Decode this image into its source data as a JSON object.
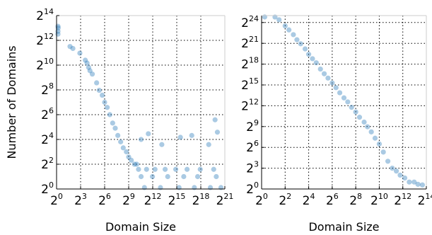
{
  "chart_data": [
    {
      "type": "scatter",
      "title": "",
      "xlabel": "Domain Size",
      "ylabel": "Number of Domains",
      "xscale": "log2",
      "yscale": "log2",
      "xlim": [
        1,
        2097152
      ],
      "ylim": [
        1,
        16384
      ],
      "x_ticks": [
        {
          "base": "2",
          "exp": "0"
        },
        {
          "base": "2",
          "exp": "3"
        },
        {
          "base": "2",
          "exp": "6"
        },
        {
          "base": "2",
          "exp": "9"
        },
        {
          "base": "2",
          "exp": "12"
        },
        {
          "base": "2",
          "exp": "15"
        },
        {
          "base": "2",
          "exp": "18"
        },
        {
          "base": "2",
          "exp": "21"
        }
      ],
      "y_ticks": [
        {
          "base": "2",
          "exp": "0"
        },
        {
          "base": "2",
          "exp": "2"
        },
        {
          "base": "2",
          "exp": "4"
        },
        {
          "base": "2",
          "exp": "6"
        },
        {
          "base": "2",
          "exp": "8"
        },
        {
          "base": "2",
          "exp": "10"
        },
        {
          "base": "2",
          "exp": "12"
        },
        {
          "base": "2",
          "exp": "14"
        }
      ],
      "grid": true,
      "point_color": "#2b7bba",
      "points": [
        [
          1,
          9000
        ],
        [
          1.15,
          8200
        ],
        [
          1.1,
          6800
        ],
        [
          1.05,
          5800
        ],
        [
          3.2,
          2900
        ],
        [
          4.1,
          2600
        ],
        [
          7.5,
          2000
        ],
        [
          12,
          1350
        ],
        [
          14,
          1150
        ],
        [
          16,
          900
        ],
        [
          18,
          750
        ],
        [
          22,
          620
        ],
        [
          32,
          380
        ],
        [
          40,
          250
        ],
        [
          52,
          190
        ],
        [
          64,
          128
        ],
        [
          80,
          96
        ],
        [
          100,
          64
        ],
        [
          128,
          40
        ],
        [
          160,
          30
        ],
        [
          200,
          20
        ],
        [
          256,
          14
        ],
        [
          320,
          10
        ],
        [
          420,
          8
        ],
        [
          512,
          6
        ],
        [
          640,
          5
        ],
        [
          840,
          4
        ],
        [
          1024,
          4
        ],
        [
          1500,
          16
        ],
        [
          2800,
          22
        ],
        [
          9000,
          12
        ],
        [
          45000,
          18
        ],
        [
          120000,
          20
        ],
        [
          520000,
          12
        ],
        [
          900000,
          48
        ],
        [
          1100000,
          24
        ],
        [
          1200,
          3
        ],
        [
          2400,
          3
        ],
        [
          5000,
          3
        ],
        [
          12000,
          3
        ],
        [
          30000,
          3
        ],
        [
          80000,
          3
        ],
        [
          250000,
          3
        ],
        [
          800000,
          3
        ],
        [
          1500,
          2
        ],
        [
          4000,
          2
        ],
        [
          15000,
          2
        ],
        [
          60000,
          2
        ],
        [
          200000,
          2
        ],
        [
          1000000,
          2
        ],
        [
          2000,
          1
        ],
        [
          8000,
          1
        ],
        [
          40000,
          1
        ],
        [
          150000,
          1
        ],
        [
          600000,
          1
        ],
        [
          1500000,
          1
        ]
      ]
    },
    {
      "type": "scatter",
      "title": "",
      "xlabel": "Domain Size",
      "ylabel": "",
      "xscale": "log2",
      "yscale": "log2",
      "xlim": [
        1,
        16384
      ],
      "ylim": [
        1,
        33554432
      ],
      "x_ticks": [
        {
          "base": "2",
          "exp": "0"
        },
        {
          "base": "2",
          "exp": "2"
        },
        {
          "base": "2",
          "exp": "4"
        },
        {
          "base": "2",
          "exp": "6"
        },
        {
          "base": "2",
          "exp": "8"
        },
        {
          "base": "2",
          "exp": "10"
        },
        {
          "base": "2",
          "exp": "12"
        },
        {
          "base": "2",
          "exp": "14"
        }
      ],
      "y_ticks": [
        {
          "base": "2",
          "exp": "0"
        },
        {
          "base": "2",
          "exp": "3"
        },
        {
          "base": "2",
          "exp": "6"
        },
        {
          "base": "2",
          "exp": "9"
        },
        {
          "base": "2",
          "exp": "12"
        },
        {
          "base": "2",
          "exp": "15"
        },
        {
          "base": "2",
          "exp": "18"
        },
        {
          "base": "2",
          "exp": "21"
        },
        {
          "base": "2",
          "exp": "24"
        }
      ],
      "grid": true,
      "point_color": "#2b7bba",
      "points": [
        [
          1.2,
          30000000
        ],
        [
          2.2,
          29000000
        ],
        [
          2.8,
          22000000
        ],
        [
          4,
          12000000
        ],
        [
          5,
          8000000
        ],
        [
          6.5,
          5000000
        ],
        [
          8,
          3000000
        ],
        [
          10,
          2000000
        ],
        [
          13,
          1200000
        ],
        [
          16,
          700000
        ],
        [
          20,
          450000
        ],
        [
          25,
          300000
        ],
        [
          32,
          160000
        ],
        [
          40,
          100000
        ],
        [
          50,
          65000
        ],
        [
          64,
          40000
        ],
        [
          80,
          25000
        ],
        [
          100,
          15000
        ],
        [
          128,
          9000
        ],
        [
          160,
          6000
        ],
        [
          200,
          3500
        ],
        [
          256,
          2200
        ],
        [
          320,
          1300
        ],
        [
          420,
          800
        ],
        [
          512,
          500
        ],
        [
          640,
          300
        ],
        [
          800,
          160
        ],
        [
          1024,
          90
        ],
        [
          1300,
          40
        ],
        [
          1700,
          16
        ],
        [
          2200,
          8
        ],
        [
          2800,
          6
        ],
        [
          3500,
          4
        ],
        [
          4600,
          3
        ],
        [
          6000,
          2
        ],
        [
          8000,
          2
        ],
        [
          10000,
          1.6
        ],
        [
          13000,
          1.5
        ]
      ]
    }
  ]
}
